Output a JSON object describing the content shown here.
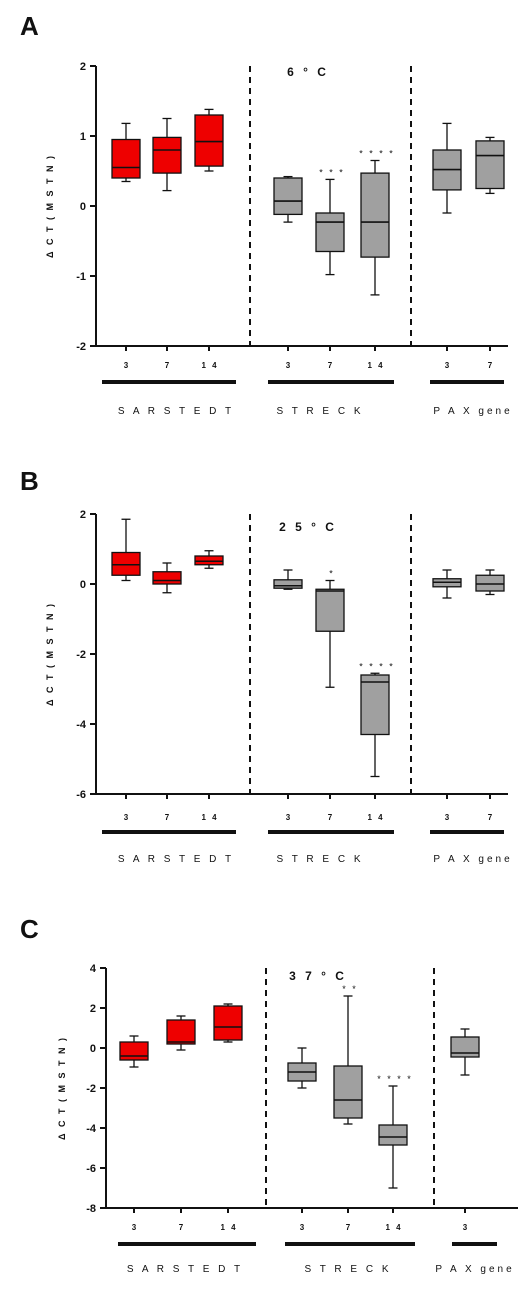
{
  "chart_data": [
    {
      "type": "box",
      "panel": "A",
      "title": "6 ° C",
      "ylabel": "Δ C T ( M S T N )",
      "ylim": [
        -2,
        2
      ],
      "yticks": [
        2,
        1,
        0,
        -1,
        -2
      ],
      "groups": [
        {
          "name": "S A R S T E D T",
          "color": "#ee0000",
          "categories": [
            "3",
            "7",
            "1 4"
          ],
          "boxes": [
            {
              "min": 0.35,
              "q1": 0.4,
              "median": 0.55,
              "q3": 0.95,
              "max": 1.18,
              "sig": ""
            },
            {
              "min": 0.22,
              "q1": 0.47,
              "median": 0.8,
              "q3": 0.98,
              "max": 1.25,
              "sig": ""
            },
            {
              "min": 0.5,
              "q1": 0.57,
              "median": 0.92,
              "q3": 1.3,
              "max": 1.38,
              "sig": ""
            }
          ]
        },
        {
          "name": "S T R E C K",
          "color": "#a0a0a0",
          "categories": [
            "3",
            "7",
            "1 4"
          ],
          "boxes": [
            {
              "min": -0.23,
              "q1": -0.12,
              "median": 0.07,
              "q3": 0.4,
              "max": 0.42,
              "sig": ""
            },
            {
              "min": -0.98,
              "q1": -0.65,
              "median": -0.23,
              "q3": -0.1,
              "max": 0.38,
              "sig": "* * *"
            },
            {
              "min": -1.27,
              "q1": -0.73,
              "median": -0.23,
              "q3": 0.47,
              "max": 0.65,
              "sig": "* * * *"
            }
          ]
        },
        {
          "name": "P A X gene",
          "color": "#a0a0a0",
          "categories": [
            "3",
            "7"
          ],
          "boxes": [
            {
              "min": -0.1,
              "q1": 0.23,
              "median": 0.52,
              "q3": 0.8,
              "max": 1.18,
              "sig": ""
            },
            {
              "min": 0.18,
              "q1": 0.25,
              "median": 0.72,
              "q3": 0.93,
              "max": 0.98,
              "sig": ""
            }
          ]
        }
      ]
    },
    {
      "type": "box",
      "panel": "B",
      "title": "2 5 ° C",
      "ylabel": "Δ C T ( M S T N )",
      "ylim": [
        -6,
        2
      ],
      "yticks": [
        2,
        0,
        -2,
        -4,
        -6
      ],
      "groups": [
        {
          "name": "S A R S T E D T",
          "color": "#ee0000",
          "categories": [
            "3",
            "7",
            "1 4"
          ],
          "boxes": [
            {
              "min": 0.1,
              "q1": 0.25,
              "median": 0.55,
              "q3": 0.9,
              "max": 1.85,
              "sig": ""
            },
            {
              "min": -0.25,
              "q1": 0.0,
              "median": 0.1,
              "q3": 0.35,
              "max": 0.6,
              "sig": ""
            },
            {
              "min": 0.45,
              "q1": 0.55,
              "median": 0.65,
              "q3": 0.8,
              "max": 0.95,
              "sig": ""
            }
          ]
        },
        {
          "name": "S T R E C K",
          "color": "#a0a0a0",
          "categories": [
            "3",
            "7",
            "1 4"
          ],
          "boxes": [
            {
              "min": -0.15,
              "q1": -0.12,
              "median": -0.05,
              "q3": 0.12,
              "max": 0.4,
              "sig": ""
            },
            {
              "min": -2.95,
              "q1": -1.35,
              "median": -0.2,
              "q3": -0.15,
              "max": 0.1,
              "sig": "*"
            },
            {
              "min": -5.5,
              "q1": -4.3,
              "median": -2.8,
              "q3": -2.6,
              "max": -2.55,
              "sig": "* * * *"
            }
          ]
        },
        {
          "name": "P A X gene",
          "color": "#a0a0a0",
          "categories": [
            "3",
            "7"
          ],
          "boxes": [
            {
              "min": -0.4,
              "q1": -0.08,
              "median": 0.05,
              "q3": 0.15,
              "max": 0.4,
              "sig": ""
            },
            {
              "min": -0.3,
              "q1": -0.2,
              "median": 0.0,
              "q3": 0.25,
              "max": 0.4,
              "sig": ""
            }
          ]
        }
      ]
    },
    {
      "type": "box",
      "panel": "C",
      "title": "3 7 ° C",
      "ylabel": "Δ C T ( M S T N )",
      "ylim": [
        -8,
        4
      ],
      "yticks": [
        4,
        2,
        0,
        -2,
        -4,
        -6,
        -8
      ],
      "groups": [
        {
          "name": "S A R S T E D T",
          "color": "#ee0000",
          "categories": [
            "3",
            "7",
            "1 4"
          ],
          "boxes": [
            {
              "min": -0.95,
              "q1": -0.6,
              "median": -0.4,
              "q3": 0.3,
              "max": 0.6,
              "sig": ""
            },
            {
              "min": -0.1,
              "q1": 0.2,
              "median": 0.3,
              "q3": 1.4,
              "max": 1.6,
              "sig": ""
            },
            {
              "min": 0.3,
              "q1": 0.4,
              "median": 1.05,
              "q3": 2.1,
              "max": 2.2,
              "sig": ""
            }
          ]
        },
        {
          "name": "S T R E C K",
          "color": "#a0a0a0",
          "categories": [
            "3",
            "7",
            "1 4"
          ],
          "boxes": [
            {
              "min": -2.0,
              "q1": -1.65,
              "median": -1.2,
              "q3": -0.75,
              "max": 0.0,
              "sig": ""
            },
            {
              "min": -3.8,
              "q1": -3.5,
              "median": -2.6,
              "q3": -0.9,
              "max": 2.6,
              "sig": "* *"
            },
            {
              "min": -7.0,
              "q1": -4.85,
              "median": -4.45,
              "q3": -3.85,
              "max": -1.9,
              "sig": "* * * *"
            }
          ]
        },
        {
          "name": "P A X gene",
          "color": "#a0a0a0",
          "categories": [
            "3"
          ],
          "boxes": [
            {
              "min": -1.35,
              "q1": -0.45,
              "median": -0.25,
              "q3": 0.55,
              "max": 0.95,
              "sig": ""
            }
          ]
        }
      ]
    }
  ]
}
